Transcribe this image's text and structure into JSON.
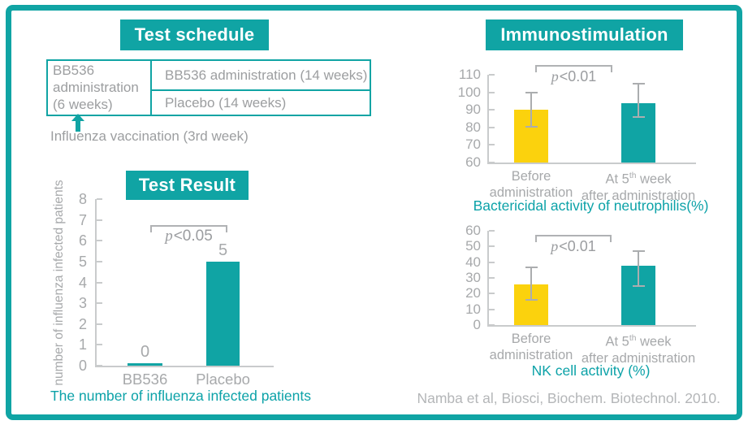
{
  "colors": {
    "teal": "#10A4A4",
    "yellow": "#FBD20D",
    "gray_text": "#9C9EA0",
    "axis_gray": "#C9CBCC"
  },
  "schedule": {
    "title": "Test schedule",
    "cell_left": "BB536 administration (6 weeks)",
    "cell_top": "BB536 administration (14 weeks)",
    "cell_bottom": "Placebo (14 weeks)",
    "arrow_note": "Influenza vaccination (3rd week)"
  },
  "immuno": {
    "title": "Immunostimulation",
    "citation": "Namba et al, Biosci, Biochem. Biotechnol. 2010."
  },
  "chart_data": [
    {
      "id": "test-result",
      "type": "bar",
      "title": "Test Result",
      "caption": "The number of influenza infected patients",
      "categories": [
        "BB536",
        "Placebo"
      ],
      "category_lines": [
        [
          "BB536"
        ],
        [
          "Placebo"
        ]
      ],
      "values": [
        0,
        5
      ],
      "value_labels": [
        "0",
        "5"
      ],
      "bar_colors": [
        "#10A4A4",
        "#10A4A4"
      ],
      "ylim": [
        0,
        8
      ],
      "ytick_step": 1,
      "ylabel": "number of influenza infected patients",
      "significance": "p<0.05",
      "errors": null,
      "legend": "none",
      "grid": false
    },
    {
      "id": "neutrophil",
      "type": "bar",
      "title": "Immunostimulation",
      "caption": "Bactericidal activity of neutrophilis(%)",
      "categories": [
        "Before administration",
        "At 5th week after administration"
      ],
      "category_lines": [
        [
          "Before",
          "administration"
        ],
        [
          "At 5th week",
          "after administration"
        ]
      ],
      "values": [
        90,
        94
      ],
      "errors": [
        [
          80.5,
          100
        ],
        [
          86,
          105
        ]
      ],
      "bar_colors": [
        "#FBD20D",
        "#10A4A4"
      ],
      "ylim": [
        60,
        110
      ],
      "ytick_step": 10,
      "ylabel": "",
      "significance": "p<0.01",
      "legend": "none",
      "grid": false
    },
    {
      "id": "nk",
      "type": "bar",
      "title": "Immunostimulation",
      "caption": "NK cell activity (%)",
      "categories": [
        "Before administration",
        "At 5th week after administration"
      ],
      "category_lines": [
        [
          "Before",
          "administration"
        ],
        [
          "At 5th week",
          "after administration"
        ]
      ],
      "values": [
        26,
        38
      ],
      "errors": [
        [
          16,
          36.5
        ],
        [
          25,
          47
        ]
      ],
      "bar_colors": [
        "#FBD20D",
        "#10A4A4"
      ],
      "ylim": [
        0,
        60
      ],
      "ytick_step": 10,
      "ylabel": "",
      "significance": "p<0.01",
      "legend": "none",
      "grid": false
    }
  ]
}
